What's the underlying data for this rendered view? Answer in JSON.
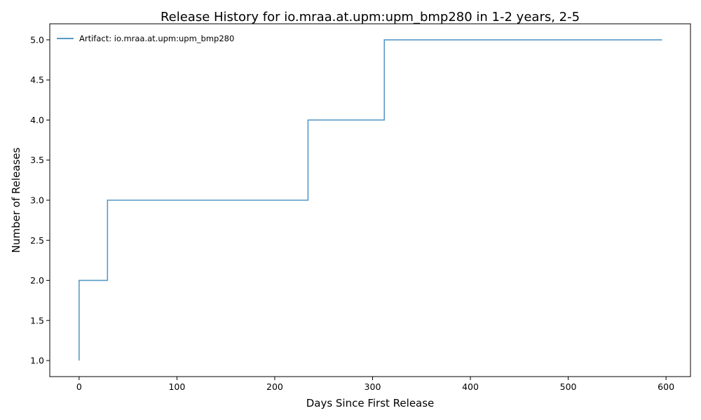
{
  "chart_data": {
    "type": "line",
    "title": "Release History for io.mraa.at.upm:upm_bmp280 in 1-2 years, 2-5",
    "xlabel": "Days Since First Release",
    "ylabel": "Number of Releases",
    "xlim": [
      -30,
      625
    ],
    "ylim": [
      0.8,
      5.2
    ],
    "x_ticks": [
      0,
      100,
      200,
      300,
      400,
      500,
      600
    ],
    "y_ticks": [
      1.0,
      1.5,
      2.0,
      2.5,
      3.0,
      3.5,
      4.0,
      4.5,
      5.0
    ],
    "x_tick_labels": [
      "0",
      "100",
      "200",
      "300",
      "400",
      "500",
      "600"
    ],
    "y_tick_labels": [
      "1.0",
      "1.5",
      "2.0",
      "2.5",
      "3.0",
      "3.5",
      "4.0",
      "4.5",
      "5.0"
    ],
    "grid": false,
    "legend_position": "top-left",
    "series": [
      {
        "name": "Artifact: io.mraa.at.upm:upm_bmp280",
        "color": "#1f77b4",
        "step": "post",
        "x": [
          0,
          0,
          29,
          234,
          312,
          596
        ],
        "y": [
          1,
          2,
          3,
          4,
          5,
          5
        ]
      }
    ]
  }
}
